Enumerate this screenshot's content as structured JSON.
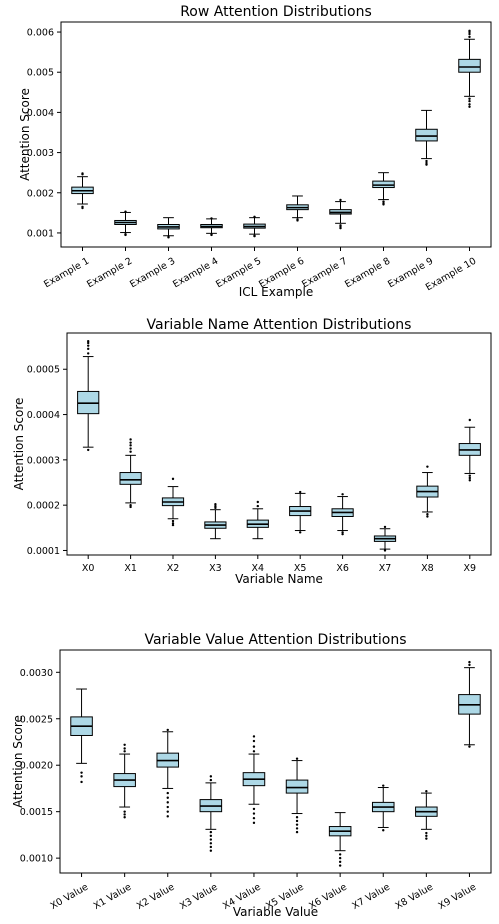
{
  "style": {
    "box_fill": "#add8e6",
    "line_color": "#000000",
    "background": "#ffffff"
  },
  "chart_data": [
    {
      "type": "box",
      "title": "Row Attention Distributions",
      "xlabel": "ICL Example",
      "ylabel": "Attention Score",
      "ylim": [
        0.00065,
        0.00625
      ],
      "yticks": [
        0.001,
        0.002,
        0.003,
        0.004,
        0.005,
        0.006
      ],
      "ytick_labels": [
        "0.001",
        "0.002",
        "0.003",
        "0.004",
        "0.005",
        "0.006"
      ],
      "xtick_rotation": -30,
      "grid": false,
      "categories": [
        "Example 1",
        "Example 2",
        "Example 3",
        "Example 4",
        "Example 5",
        "Example 6",
        "Example 7",
        "Example 8",
        "Example 9",
        "Example 10"
      ],
      "boxes": [
        {
          "whislo": 0.00172,
          "q1": 0.00198,
          "med": 0.00205,
          "q3": 0.00214,
          "whishi": 0.0024,
          "fliers": [
            0.00165,
            0.00162,
            0.00246,
            0.00248
          ]
        },
        {
          "whislo": 0.00101,
          "q1": 0.00121,
          "med": 0.00126,
          "q3": 0.00131,
          "whishi": 0.00151,
          "fliers": [
            0.00097,
            0.00095,
            0.00153
          ]
        },
        {
          "whislo": 0.00093,
          "q1": 0.0011,
          "med": 0.00115,
          "q3": 0.00121,
          "whishi": 0.00138,
          "fliers": [
            0.0009,
            0.00089
          ]
        },
        {
          "whislo": 0.00099,
          "q1": 0.00113,
          "med": 0.00116,
          "q3": 0.00121,
          "whishi": 0.00135,
          "fliers": [
            0.00096,
            0.00095,
            0.00136
          ]
        },
        {
          "whislo": 0.00097,
          "q1": 0.00112,
          "med": 0.00116,
          "q3": 0.00122,
          "whishi": 0.00138,
          "fliers": [
            0.00093,
            0.00092,
            0.0014
          ]
        },
        {
          "whislo": 0.00138,
          "q1": 0.00158,
          "med": 0.00163,
          "q3": 0.0017,
          "whishi": 0.00192,
          "fliers": [
            0.00134,
            0.00131
          ]
        },
        {
          "whislo": 0.00124,
          "q1": 0.00147,
          "med": 0.00151,
          "q3": 0.00158,
          "whishi": 0.00178,
          "fliers": [
            0.00119,
            0.00115,
            0.00112,
            0.00182
          ]
        },
        {
          "whislo": 0.00183,
          "q1": 0.00213,
          "med": 0.00219,
          "q3": 0.00229,
          "whishi": 0.0025,
          "fliers": [
            0.00178,
            0.00174,
            0.00171
          ]
        },
        {
          "whislo": 0.00285,
          "q1": 0.00329,
          "med": 0.00341,
          "q3": 0.00358,
          "whishi": 0.00405,
          "fliers": [
            0.00279,
            0.00274,
            0.0027
          ]
        },
        {
          "whislo": 0.0044,
          "q1": 0.005,
          "med": 0.00513,
          "q3": 0.00532,
          "whishi": 0.00582,
          "fliers": [
            0.00434,
            0.00428,
            0.0042,
            0.00414,
            0.00588,
            0.00595,
            0.006,
            0.00603
          ]
        }
      ]
    },
    {
      "type": "box",
      "title": "Variable Name Attention Distributions",
      "xlabel": "Variable Name",
      "ylabel": "Attention Score",
      "ylim": [
        9e-05,
        0.00058
      ],
      "yticks": [
        0.0001,
        0.0002,
        0.0003,
        0.0004,
        0.0005
      ],
      "ytick_labels": [
        "0.0001",
        "0.0002",
        "0.0003",
        "0.0004",
        "0.0005"
      ],
      "xtick_rotation": 0,
      "grid": false,
      "categories": [
        "X0",
        "X1",
        "X2",
        "X3",
        "X4",
        "X5",
        "X6",
        "X7",
        "X8",
        "X9"
      ],
      "boxes": [
        {
          "whislo": 0.000328,
          "q1": 0.000402,
          "med": 0.000425,
          "q3": 0.000451,
          "whishi": 0.000528,
          "fliers": [
            0.000322,
            0.000535,
            0.000545,
            0.000552,
            0.000558,
            0.000562
          ]
        },
        {
          "whislo": 0.000205,
          "q1": 0.000246,
          "med": 0.000256,
          "q3": 0.000272,
          "whishi": 0.00031,
          "fliers": [
            0.0002,
            0.000196,
            0.000318,
            0.000325,
            0.000332,
            0.000338,
            0.000345
          ]
        },
        {
          "whislo": 0.00017,
          "q1": 0.000199,
          "med": 0.000207,
          "q3": 0.000216,
          "whishi": 0.000241,
          "fliers": [
            0.000165,
            0.00016,
            0.000156,
            0.000258
          ]
        },
        {
          "whislo": 0.000126,
          "q1": 0.000149,
          "med": 0.000156,
          "q3": 0.000163,
          "whishi": 0.00019,
          "fliers": [
            0.000194,
            0.000198,
            0.000202
          ]
        },
        {
          "whislo": 0.000126,
          "q1": 0.000151,
          "med": 0.000158,
          "q3": 0.000167,
          "whishi": 0.000192,
          "fliers": [
            0.000198,
            0.000207
          ]
        },
        {
          "whislo": 0.000144,
          "q1": 0.000177,
          "med": 0.000187,
          "q3": 0.000197,
          "whishi": 0.000226,
          "fliers": [
            0.00014,
            0.000229
          ]
        },
        {
          "whislo": 0.000144,
          "q1": 0.000175,
          "med": 0.000184,
          "q3": 0.000192,
          "whishi": 0.000219,
          "fliers": [
            0.00014,
            0.000136,
            0.000224
          ]
        },
        {
          "whislo": 0.000103,
          "q1": 0.00012,
          "med": 0.000126,
          "q3": 0.000132,
          "whishi": 0.000148,
          "fliers": [
            0.0001,
            0.000152
          ]
        },
        {
          "whislo": 0.000185,
          "q1": 0.000218,
          "med": 0.00023,
          "q3": 0.000242,
          "whishi": 0.000272,
          "fliers": [
            0.00018,
            0.000175,
            0.000285
          ]
        },
        {
          "whislo": 0.00027,
          "q1": 0.00031,
          "med": 0.000322,
          "q3": 0.000336,
          "whishi": 0.000372,
          "fliers": [
            0.000265,
            0.00026,
            0.000255,
            0.000388
          ]
        }
      ]
    },
    {
      "type": "box",
      "title": "Variable Value Attention Distributions",
      "xlabel": "Variable Value",
      "ylabel": "Attention Score",
      "ylim": [
        0.00084,
        0.00324
      ],
      "yticks": [
        0.001,
        0.0015,
        0.002,
        0.0025,
        0.003
      ],
      "ytick_labels": [
        "0.0010",
        "0.0015",
        "0.0020",
        "0.0025",
        "0.0030"
      ],
      "xtick_rotation": -30,
      "grid": false,
      "categories": [
        "X0 Value",
        "X1 Value",
        "X2 Value",
        "X3 Value",
        "X4 Value",
        "X5 Value",
        "X6 Value",
        "X7 Value",
        "X8 Value",
        "X9 Value"
      ],
      "boxes": [
        {
          "whislo": 0.00202,
          "q1": 0.00232,
          "med": 0.00242,
          "q3": 0.00252,
          "whishi": 0.00282,
          "fliers": [
            0.00192,
            0.00188,
            0.00182
          ]
        },
        {
          "whislo": 0.00155,
          "q1": 0.00177,
          "med": 0.00184,
          "q3": 0.00191,
          "whishi": 0.00212,
          "fliers": [
            0.0015,
            0.00147,
            0.00144,
            0.00215,
            0.00218,
            0.00222
          ]
        },
        {
          "whislo": 0.00175,
          "q1": 0.00198,
          "med": 0.00205,
          "q3": 0.00213,
          "whishi": 0.00236,
          "fliers": [
            0.0017,
            0.00165,
            0.0016,
            0.00155,
            0.0015,
            0.00145,
            0.00238
          ]
        },
        {
          "whislo": 0.00131,
          "q1": 0.0015,
          "med": 0.00156,
          "q3": 0.00163,
          "whishi": 0.00181,
          "fliers": [
            0.00128,
            0.00124,
            0.0012,
            0.00116,
            0.00112,
            0.00108,
            0.00184,
            0.00188
          ]
        },
        {
          "whislo": 0.00158,
          "q1": 0.00178,
          "med": 0.00185,
          "q3": 0.00192,
          "whishi": 0.00212,
          "fliers": [
            0.00153,
            0.00148,
            0.00143,
            0.00138,
            0.00215,
            0.0022,
            0.00226,
            0.00231
          ]
        },
        {
          "whislo": 0.00148,
          "q1": 0.0017,
          "med": 0.00176,
          "q3": 0.00184,
          "whishi": 0.00205,
          "fliers": [
            0.00144,
            0.0014,
            0.00136,
            0.00132,
            0.00128,
            0.00207
          ]
        },
        {
          "whislo": 0.00108,
          "q1": 0.00124,
          "med": 0.00129,
          "q3": 0.00134,
          "whishi": 0.00149,
          "fliers": [
            0.00104,
            0.001,
            0.00096,
            0.00092
          ]
        },
        {
          "whislo": 0.00133,
          "q1": 0.0015,
          "med": 0.00155,
          "q3": 0.0016,
          "whishi": 0.00176,
          "fliers": [
            0.0013,
            0.00178
          ]
        },
        {
          "whislo": 0.00131,
          "q1": 0.00145,
          "med": 0.0015,
          "q3": 0.00155,
          "whishi": 0.0017,
          "fliers": [
            0.00127,
            0.00124,
            0.00121,
            0.00172
          ]
        },
        {
          "whislo": 0.00222,
          "q1": 0.00255,
          "med": 0.00265,
          "q3": 0.00276,
          "whishi": 0.00305,
          "fliers": [
            0.0022,
            0.00308,
            0.00311
          ]
        }
      ]
    }
  ]
}
